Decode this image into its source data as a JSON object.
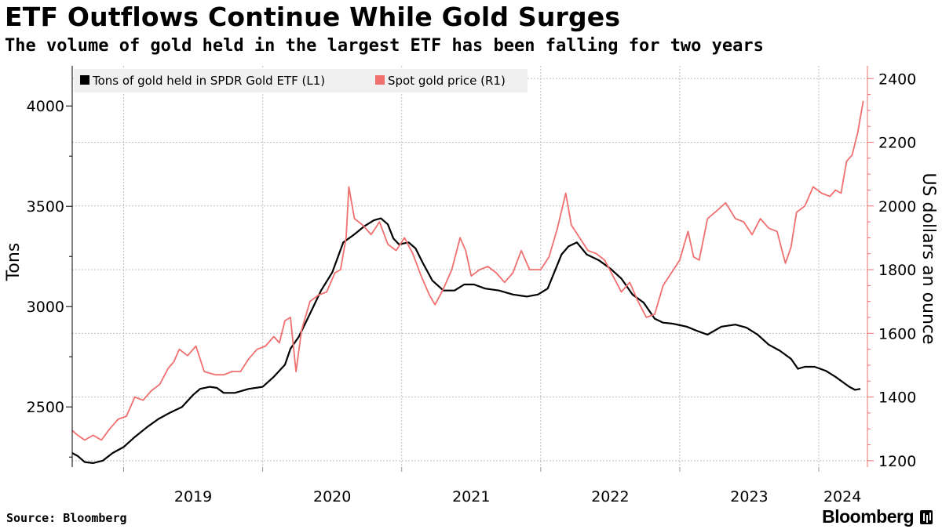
{
  "header": {
    "title": "ETF Outflows Continue While Gold Surges",
    "subtitle": "The volume of gold held in the largest ETF has been falling for two years"
  },
  "footer": {
    "source": "Source: Bloomberg",
    "brand": "Bloomberg"
  },
  "colors": {
    "series_l1": "#000000",
    "series_r1": "#f06f6f",
    "grid": "#bdbdbd",
    "legend_bg": "#f0f0f0"
  },
  "chart_data": {
    "type": "line",
    "legend_position": "top-left",
    "grid": true,
    "x_ticks": [
      "2019",
      "2020",
      "2021",
      "2022",
      "2023",
      "2024"
    ],
    "x_range": [
      2018.63,
      2024.35
    ],
    "y_left": {
      "label": "Tons",
      "range": [
        2200,
        4200
      ],
      "ticks": [
        2500,
        3000,
        3500,
        4000
      ]
    },
    "y_right": {
      "label": "US dollars an ounce",
      "range": [
        1180,
        2440
      ],
      "ticks": [
        1200,
        1400,
        1600,
        1800,
        2000,
        2200,
        2400
      ]
    },
    "series": [
      {
        "name": "Tons of gold held in SPDR Gold ETF  (L1)",
        "axis": "left",
        "points": [
          [
            2018.63,
            2270
          ],
          [
            2018.67,
            2255
          ],
          [
            2018.72,
            2225
          ],
          [
            2018.78,
            2220
          ],
          [
            2018.85,
            2232
          ],
          [
            2018.92,
            2270
          ],
          [
            2019.0,
            2300
          ],
          [
            2019.08,
            2350
          ],
          [
            2019.17,
            2400
          ],
          [
            2019.25,
            2440
          ],
          [
            2019.33,
            2470
          ],
          [
            2019.42,
            2500
          ],
          [
            2019.5,
            2560
          ],
          [
            2019.55,
            2590
          ],
          [
            2019.62,
            2600
          ],
          [
            2019.67,
            2595
          ],
          [
            2019.72,
            2570
          ],
          [
            2019.8,
            2570
          ],
          [
            2019.9,
            2590
          ],
          [
            2020.0,
            2600
          ],
          [
            2020.08,
            2650
          ],
          [
            2020.16,
            2710
          ],
          [
            2020.2,
            2790
          ],
          [
            2020.26,
            2850
          ],
          [
            2020.33,
            2950
          ],
          [
            2020.42,
            3080
          ],
          [
            2020.5,
            3170
          ],
          [
            2020.58,
            3320
          ],
          [
            2020.66,
            3360
          ],
          [
            2020.73,
            3400
          ],
          [
            2020.8,
            3430
          ],
          [
            2020.85,
            3440
          ],
          [
            2020.9,
            3410
          ],
          [
            2020.94,
            3340
          ],
          [
            2020.98,
            3310
          ],
          [
            2021.05,
            3320
          ],
          [
            2021.1,
            3290
          ],
          [
            2021.15,
            3220
          ],
          [
            2021.22,
            3130
          ],
          [
            2021.3,
            3080
          ],
          [
            2021.38,
            3080
          ],
          [
            2021.45,
            3110
          ],
          [
            2021.52,
            3110
          ],
          [
            2021.6,
            3090
          ],
          [
            2021.7,
            3080
          ],
          [
            2021.8,
            3060
          ],
          [
            2021.9,
            3050
          ],
          [
            2021.98,
            3060
          ],
          [
            2022.05,
            3090
          ],
          [
            2022.15,
            3260
          ],
          [
            2022.2,
            3300
          ],
          [
            2022.26,
            3320
          ],
          [
            2022.33,
            3260
          ],
          [
            2022.42,
            3230
          ],
          [
            2022.5,
            3190
          ],
          [
            2022.58,
            3140
          ],
          [
            2022.66,
            3060
          ],
          [
            2022.74,
            3020
          ],
          [
            2022.82,
            2940
          ],
          [
            2022.88,
            2920
          ],
          [
            2022.95,
            2915
          ],
          [
            2023.05,
            2900
          ],
          [
            2023.12,
            2880
          ],
          [
            2023.2,
            2860
          ],
          [
            2023.3,
            2900
          ],
          [
            2023.4,
            2910
          ],
          [
            2023.48,
            2895
          ],
          [
            2023.56,
            2860
          ],
          [
            2023.64,
            2810
          ],
          [
            2023.72,
            2780
          ],
          [
            2023.8,
            2740
          ],
          [
            2023.85,
            2690
          ],
          [
            2023.9,
            2700
          ],
          [
            2023.97,
            2700
          ],
          [
            2024.05,
            2680
          ],
          [
            2024.12,
            2650
          ],
          [
            2024.18,
            2620
          ],
          [
            2024.22,
            2600
          ],
          [
            2024.26,
            2585
          ],
          [
            2024.3,
            2590
          ]
        ]
      },
      {
        "name": "Spot gold price (R1)",
        "axis": "right",
        "points": [
          [
            2018.63,
            1295
          ],
          [
            2018.67,
            1280
          ],
          [
            2018.72,
            1265
          ],
          [
            2018.78,
            1280
          ],
          [
            2018.84,
            1265
          ],
          [
            2018.9,
            1300
          ],
          [
            2018.96,
            1330
          ],
          [
            2019.02,
            1340
          ],
          [
            2019.08,
            1400
          ],
          [
            2019.14,
            1390
          ],
          [
            2019.2,
            1420
          ],
          [
            2019.26,
            1440
          ],
          [
            2019.32,
            1490
          ],
          [
            2019.36,
            1510
          ],
          [
            2019.4,
            1550
          ],
          [
            2019.46,
            1530
          ],
          [
            2019.52,
            1560
          ],
          [
            2019.58,
            1480
          ],
          [
            2019.66,
            1470
          ],
          [
            2019.72,
            1470
          ],
          [
            2019.78,
            1480
          ],
          [
            2019.84,
            1480
          ],
          [
            2019.9,
            1520
          ],
          [
            2019.96,
            1550
          ],
          [
            2020.02,
            1560
          ],
          [
            2020.08,
            1590
          ],
          [
            2020.12,
            1570
          ],
          [
            2020.16,
            1640
          ],
          [
            2020.2,
            1650
          ],
          [
            2020.24,
            1480
          ],
          [
            2020.28,
            1610
          ],
          [
            2020.34,
            1700
          ],
          [
            2020.4,
            1720
          ],
          [
            2020.46,
            1730
          ],
          [
            2020.52,
            1790
          ],
          [
            2020.56,
            1800
          ],
          [
            2020.6,
            1900
          ],
          [
            2020.62,
            2060
          ],
          [
            2020.66,
            1960
          ],
          [
            2020.72,
            1940
          ],
          [
            2020.78,
            1910
          ],
          [
            2020.84,
            1950
          ],
          [
            2020.9,
            1880
          ],
          [
            2020.96,
            1860
          ],
          [
            2021.02,
            1900
          ],
          [
            2021.08,
            1850
          ],
          [
            2021.14,
            1780
          ],
          [
            2021.2,
            1720
          ],
          [
            2021.24,
            1690
          ],
          [
            2021.3,
            1740
          ],
          [
            2021.36,
            1800
          ],
          [
            2021.42,
            1900
          ],
          [
            2021.46,
            1860
          ],
          [
            2021.5,
            1780
          ],
          [
            2021.56,
            1800
          ],
          [
            2021.62,
            1810
          ],
          [
            2021.68,
            1790
          ],
          [
            2021.74,
            1760
          ],
          [
            2021.8,
            1790
          ],
          [
            2021.86,
            1860
          ],
          [
            2021.92,
            1800
          ],
          [
            2022.0,
            1800
          ],
          [
            2022.06,
            1840
          ],
          [
            2022.12,
            1930
          ],
          [
            2022.18,
            2040
          ],
          [
            2022.22,
            1940
          ],
          [
            2022.28,
            1900
          ],
          [
            2022.34,
            1860
          ],
          [
            2022.4,
            1850
          ],
          [
            2022.46,
            1830
          ],
          [
            2022.52,
            1780
          ],
          [
            2022.58,
            1730
          ],
          [
            2022.64,
            1760
          ],
          [
            2022.7,
            1700
          ],
          [
            2022.76,
            1650
          ],
          [
            2022.82,
            1660
          ],
          [
            2022.88,
            1750
          ],
          [
            2022.94,
            1790
          ],
          [
            2023.0,
            1830
          ],
          [
            2023.06,
            1920
          ],
          [
            2023.1,
            1840
          ],
          [
            2023.14,
            1830
          ],
          [
            2023.2,
            1960
          ],
          [
            2023.28,
            1990
          ],
          [
            2023.33,
            2010
          ],
          [
            2023.4,
            1960
          ],
          [
            2023.46,
            1950
          ],
          [
            2023.52,
            1910
          ],
          [
            2023.58,
            1960
          ],
          [
            2023.64,
            1930
          ],
          [
            2023.7,
            1920
          ],
          [
            2023.76,
            1820
          ],
          [
            2023.8,
            1870
          ],
          [
            2023.84,
            1980
          ],
          [
            2023.9,
            2000
          ],
          [
            2023.96,
            2060
          ],
          [
            2024.02,
            2040
          ],
          [
            2024.08,
            2030
          ],
          [
            2024.12,
            2050
          ],
          [
            2024.16,
            2040
          ],
          [
            2024.2,
            2140
          ],
          [
            2024.24,
            2160
          ],
          [
            2024.28,
            2230
          ],
          [
            2024.32,
            2330
          ]
        ]
      }
    ]
  }
}
